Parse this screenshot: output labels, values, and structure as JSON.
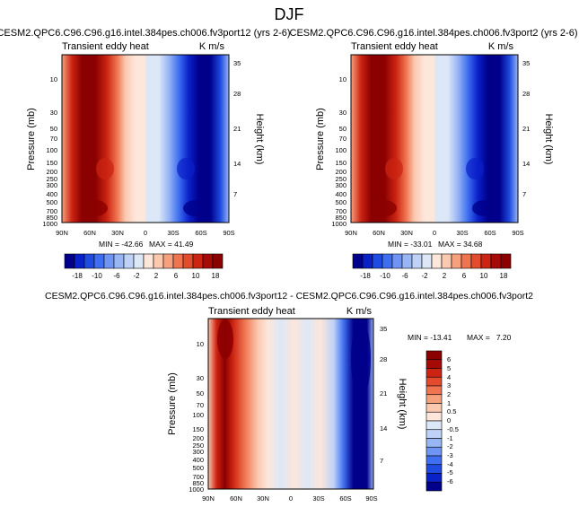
{
  "figure": {
    "title": "DJF",
    "diff_title": "CESM2.QPC6.C96.C96.g16.intel.384pes.ch006.fv3port12 - CESM2.QPC6.C96.C96.g16.intel.384pes.ch006.fv3port2"
  },
  "colors": {
    "scale": [
      "#00008b",
      "#0a20c9",
      "#1f4be0",
      "#3f6ff0",
      "#6f94f4",
      "#98b5f4",
      "#bed2f7",
      "#dce8f8",
      "#fde6da",
      "#fbc8b0",
      "#f6a07d",
      "#ef7450",
      "#e24b2c",
      "#cc2412",
      "#a60a06",
      "#8b0000"
    ]
  },
  "chart_data": [
    {
      "type": "heatmap",
      "title": "CESM2.QPC6.C96.C96.g16.intel.384pes.ch006.fv3port12 (yrs 2-6)",
      "subtitle": "Transient eddy heat",
      "units": "K m/s",
      "xlabel": "",
      "ylabel": "Pressure (mb)",
      "y2label": "Height (km)",
      "x_ticks": [
        "90N",
        "60N",
        "30N",
        "0",
        "30S",
        "60S",
        "90S"
      ],
      "x_range": [
        90,
        -90
      ],
      "y_ticks": [
        10,
        30,
        50,
        70,
        100,
        150,
        200,
        250,
        300,
        400,
        500,
        700,
        850,
        1000
      ],
      "y_range": [
        3.5,
        1000
      ],
      "y_scale": "log",
      "height_ticks": [
        35,
        28,
        21,
        14,
        7
      ],
      "min": -42.66,
      "max": 41.49,
      "min_label": "MIN = -42.66",
      "max_label": "MAX = 41.49",
      "colorbar_labels": [
        "-18",
        "-10",
        "-6",
        "-2",
        "2",
        "6",
        "10",
        "18"
      ],
      "colorbar_orientation": "horizontal"
    },
    {
      "type": "heatmap",
      "title": "CESM2.QPC6.C96.C96.g16.intel.384pes.ch006.fv3port2 (yrs 2-6)",
      "subtitle": "Transient eddy heat",
      "units": "K m/s",
      "xlabel": "",
      "ylabel": "Pressure (mb)",
      "y2label": "Height (km)",
      "x_ticks": [
        "90N",
        "60N",
        "30N",
        "0",
        "30S",
        "60S",
        "90S"
      ],
      "x_range": [
        90,
        -90
      ],
      "y_ticks": [
        10,
        30,
        50,
        70,
        100,
        150,
        200,
        250,
        300,
        400,
        500,
        700,
        850,
        1000
      ],
      "y_range": [
        3.5,
        1000
      ],
      "y_scale": "log",
      "height_ticks": [
        35,
        28,
        21,
        14,
        7
      ],
      "min": -33.01,
      "max": 34.68,
      "min_label": "MIN = -33.01",
      "max_label": "MAX = 34.68",
      "colorbar_labels": [
        "-18",
        "-10",
        "-6",
        "-2",
        "2",
        "6",
        "10",
        "18"
      ],
      "colorbar_orientation": "horizontal"
    },
    {
      "type": "heatmap",
      "title": "",
      "subtitle": "Transient eddy heat",
      "units": "K m/s",
      "xlabel": "",
      "ylabel": "Pressure (mb)",
      "y2label": "Height (km)",
      "x_ticks": [
        "90N",
        "60N",
        "30N",
        "0",
        "30S",
        "60S",
        "90S"
      ],
      "x_range": [
        90,
        -90
      ],
      "y_ticks": [
        10,
        30,
        50,
        70,
        100,
        150,
        200,
        250,
        300,
        400,
        500,
        700,
        850,
        1000
      ],
      "y_range": [
        3.5,
        1000
      ],
      "y_scale": "log",
      "height_ticks": [
        35,
        28,
        21,
        14,
        7
      ],
      "min": -13.41,
      "max": 7.2,
      "min_label": "MIN = -13.41",
      "max_label": "MAX =   7.20",
      "colorbar_labels": [
        "6",
        "5",
        "4",
        "3",
        "2",
        "1",
        "0.5",
        "0",
        "-0.5",
        "-1",
        "-2",
        "-3",
        "-4",
        "-5",
        "-6"
      ],
      "colorbar_orientation": "vertical"
    }
  ]
}
